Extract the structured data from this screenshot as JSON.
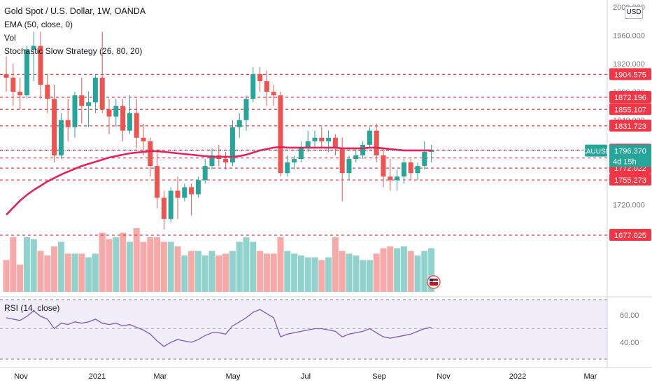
{
  "header": {
    "title": "Gold Spot / U.S. Dollar, 1W, OANDA",
    "indicators": [
      "EMA (50, close, 0)",
      "Vol",
      "Stochastic Slow Strategy (26, 80, 20)"
    ]
  },
  "currency_badge": "USD",
  "rsi_label": "RSI (14, close)",
  "colors": {
    "up": "#26a69a",
    "down": "#ef5350",
    "ema": "#e0245e",
    "rsi": "#7e57c2",
    "level": "#f23645"
  },
  "chart_data": {
    "type": "candlestick",
    "title": "Gold Spot / U.S. Dollar, 1W, OANDA",
    "y_ticks": [
      "2000.000",
      "1960.000",
      "1920.000",
      "1880.000",
      "1840.000",
      "1720.000"
    ],
    "x_labels": [
      "Nov",
      "2021",
      "Mar",
      "May",
      "Jul",
      "Sep",
      "Nov",
      "2022",
      "Mar"
    ],
    "candles": [
      {
        "o": 1905,
        "h": 1930,
        "l": 1880,
        "c": 1900
      },
      {
        "o": 1900,
        "h": 1920,
        "l": 1860,
        "c": 1880
      },
      {
        "o": 1880,
        "h": 1900,
        "l": 1855,
        "c": 1875
      },
      {
        "o": 1875,
        "h": 1945,
        "l": 1870,
        "c": 1940
      },
      {
        "o": 1940,
        "h": 1965,
        "l": 1895,
        "c": 1945
      },
      {
        "o": 1945,
        "h": 1965,
        "l": 1870,
        "c": 1890
      },
      {
        "o": 1890,
        "h": 1905,
        "l": 1850,
        "c": 1870
      },
      {
        "o": 1870,
        "h": 1890,
        "l": 1780,
        "c": 1790
      },
      {
        "o": 1790,
        "h": 1850,
        "l": 1785,
        "c": 1840
      },
      {
        "o": 1840,
        "h": 1870,
        "l": 1810,
        "c": 1830
      },
      {
        "o": 1830,
        "h": 1880,
        "l": 1815,
        "c": 1875
      },
      {
        "o": 1875,
        "h": 1900,
        "l": 1835,
        "c": 1860
      },
      {
        "o": 1860,
        "h": 1880,
        "l": 1830,
        "c": 1865
      },
      {
        "o": 1865,
        "h": 1905,
        "l": 1850,
        "c": 1900
      },
      {
        "o": 1900,
        "h": 1965,
        "l": 1850,
        "c": 1855
      },
      {
        "o": 1855,
        "h": 1870,
        "l": 1820,
        "c": 1845
      },
      {
        "o": 1845,
        "h": 1870,
        "l": 1830,
        "c": 1860
      },
      {
        "o": 1860,
        "h": 1870,
        "l": 1810,
        "c": 1825
      },
      {
        "o": 1825,
        "h": 1875,
        "l": 1820,
        "c": 1850
      },
      {
        "o": 1850,
        "h": 1870,
        "l": 1800,
        "c": 1815
      },
      {
        "o": 1815,
        "h": 1835,
        "l": 1790,
        "c": 1810
      },
      {
        "o": 1810,
        "h": 1815,
        "l": 1760,
        "c": 1775
      },
      {
        "o": 1775,
        "h": 1795,
        "l": 1715,
        "c": 1730
      },
      {
        "o": 1730,
        "h": 1740,
        "l": 1685,
        "c": 1700
      },
      {
        "o": 1700,
        "h": 1745,
        "l": 1695,
        "c": 1740
      },
      {
        "o": 1740,
        "h": 1760,
        "l": 1700,
        "c": 1730
      },
      {
        "o": 1730,
        "h": 1750,
        "l": 1725,
        "c": 1745
      },
      {
        "o": 1745,
        "h": 1750,
        "l": 1705,
        "c": 1735
      },
      {
        "o": 1735,
        "h": 1760,
        "l": 1730,
        "c": 1755
      },
      {
        "o": 1755,
        "h": 1785,
        "l": 1750,
        "c": 1775
      },
      {
        "o": 1775,
        "h": 1800,
        "l": 1770,
        "c": 1790
      },
      {
        "o": 1790,
        "h": 1805,
        "l": 1775,
        "c": 1785
      },
      {
        "o": 1785,
        "h": 1795,
        "l": 1770,
        "c": 1780
      },
      {
        "o": 1780,
        "h": 1840,
        "l": 1775,
        "c": 1830
      },
      {
        "o": 1830,
        "h": 1850,
        "l": 1815,
        "c": 1840
      },
      {
        "o": 1840,
        "h": 1875,
        "l": 1825,
        "c": 1870
      },
      {
        "o": 1870,
        "h": 1915,
        "l": 1865,
        "c": 1905
      },
      {
        "o": 1905,
        "h": 1915,
        "l": 1880,
        "c": 1895
      },
      {
        "o": 1895,
        "h": 1910,
        "l": 1860,
        "c": 1880
      },
      {
        "o": 1880,
        "h": 1890,
        "l": 1860,
        "c": 1875
      },
      {
        "o": 1875,
        "h": 1880,
        "l": 1760,
        "c": 1765
      },
      {
        "o": 1765,
        "h": 1790,
        "l": 1760,
        "c": 1780
      },
      {
        "o": 1780,
        "h": 1790,
        "l": 1770,
        "c": 1785
      },
      {
        "o": 1785,
        "h": 1810,
        "l": 1780,
        "c": 1800
      },
      {
        "o": 1800,
        "h": 1825,
        "l": 1795,
        "c": 1810
      },
      {
        "o": 1810,
        "h": 1825,
        "l": 1800,
        "c": 1815
      },
      {
        "o": 1815,
        "h": 1830,
        "l": 1800,
        "c": 1810
      },
      {
        "o": 1810,
        "h": 1825,
        "l": 1795,
        "c": 1815
      },
      {
        "o": 1815,
        "h": 1820,
        "l": 1790,
        "c": 1800
      },
      {
        "o": 1800,
        "h": 1815,
        "l": 1725,
        "c": 1765
      },
      {
        "o": 1765,
        "h": 1790,
        "l": 1755,
        "c": 1785
      },
      {
        "o": 1785,
        "h": 1800,
        "l": 1780,
        "c": 1790
      },
      {
        "o": 1790,
        "h": 1810,
        "l": 1785,
        "c": 1805
      },
      {
        "o": 1805,
        "h": 1830,
        "l": 1800,
        "c": 1825
      },
      {
        "o": 1825,
        "h": 1835,
        "l": 1780,
        "c": 1790
      },
      {
        "o": 1790,
        "h": 1800,
        "l": 1745,
        "c": 1760
      },
      {
        "o": 1760,
        "h": 1785,
        "l": 1740,
        "c": 1755
      },
      {
        "o": 1755,
        "h": 1770,
        "l": 1740,
        "c": 1760
      },
      {
        "o": 1760,
        "h": 1785,
        "l": 1750,
        "c": 1780
      },
      {
        "o": 1780,
        "h": 1785,
        "l": 1755,
        "c": 1765
      },
      {
        "o": 1765,
        "h": 1780,
        "l": 1755,
        "c": 1775
      },
      {
        "o": 1775,
        "h": 1810,
        "l": 1770,
        "c": 1795
      },
      {
        "o": 1795,
        "h": 1805,
        "l": 1780,
        "c": 1797
      }
    ],
    "ema": [
      1706,
      1716,
      1726,
      1734,
      1741,
      1747,
      1753,
      1758,
      1763,
      1767,
      1771,
      1775,
      1778,
      1781,
      1784,
      1787,
      1789,
      1791,
      1793,
      1794,
      1795,
      1796,
      1796,
      1795,
      1794,
      1793,
      1792,
      1791,
      1790,
      1789,
      1788,
      1788,
      1788,
      1788,
      1789,
      1791,
      1794,
      1797,
      1799,
      1801,
      1802,
      1801,
      1801,
      1801,
      1801,
      1801,
      1801,
      1801,
      1801,
      1800,
      1800,
      1800,
      1800,
      1801,
      1801,
      1800,
      1799,
      1798,
      1797,
      1797,
      1797,
      1797,
      1797
    ],
    "volume": [
      0.35,
      0.6,
      0.3,
      0.6,
      0.58,
      0.45,
      0.4,
      0.5,
      0.55,
      0.42,
      0.42,
      0.42,
      0.38,
      0.42,
      0.65,
      0.58,
      0.6,
      0.65,
      0.55,
      0.7,
      0.55,
      0.6,
      0.6,
      0.55,
      0.55,
      0.5,
      0.4,
      0.45,
      0.45,
      0.4,
      0.45,
      0.4,
      0.42,
      0.45,
      0.55,
      0.6,
      0.55,
      0.45,
      0.42,
      0.42,
      0.6,
      0.45,
      0.42,
      0.4,
      0.38,
      0.38,
      0.35,
      0.38,
      0.6,
      0.45,
      0.42,
      0.4,
      0.35,
      0.35,
      0.42,
      0.48,
      0.5,
      0.48,
      0.5,
      0.45,
      0.4,
      0.45,
      0.48
    ],
    "rsi": [
      58,
      57,
      56,
      59,
      63,
      59,
      57,
      50,
      54,
      53,
      55,
      54,
      55,
      57,
      54,
      53,
      54,
      52,
      53,
      51,
      49,
      46,
      41,
      37,
      40,
      42,
      41,
      40,
      42,
      45,
      47,
      47,
      46,
      52,
      55,
      58,
      62,
      64,
      61,
      58,
      44,
      46,
      47,
      48,
      49,
      50,
      50,
      49,
      48,
      44,
      46,
      47,
      48,
      50,
      47,
      44,
      43,
      44,
      45,
      46,
      48,
      50,
      51
    ],
    "price_levels": [
      "1904.575",
      "1872.196",
      "1855.107",
      "1831.723",
      "1797.545",
      "1786.337",
      "1772.022",
      "1755.273",
      "1677.025"
    ],
    "price_level_values": [
      1904.575,
      1872.196,
      1855.107,
      1831.723,
      1797.545,
      1786.337,
      1772.022,
      1755.273,
      1677.025
    ],
    "current": {
      "symbol": "XAUUSD",
      "price": "1796.370",
      "price_value": 1796.37,
      "countdown": "4d 15h"
    },
    "rsi_ticks": [
      "60.00",
      "40.00"
    ],
    "ylim": [
      1683,
      2004
    ]
  }
}
